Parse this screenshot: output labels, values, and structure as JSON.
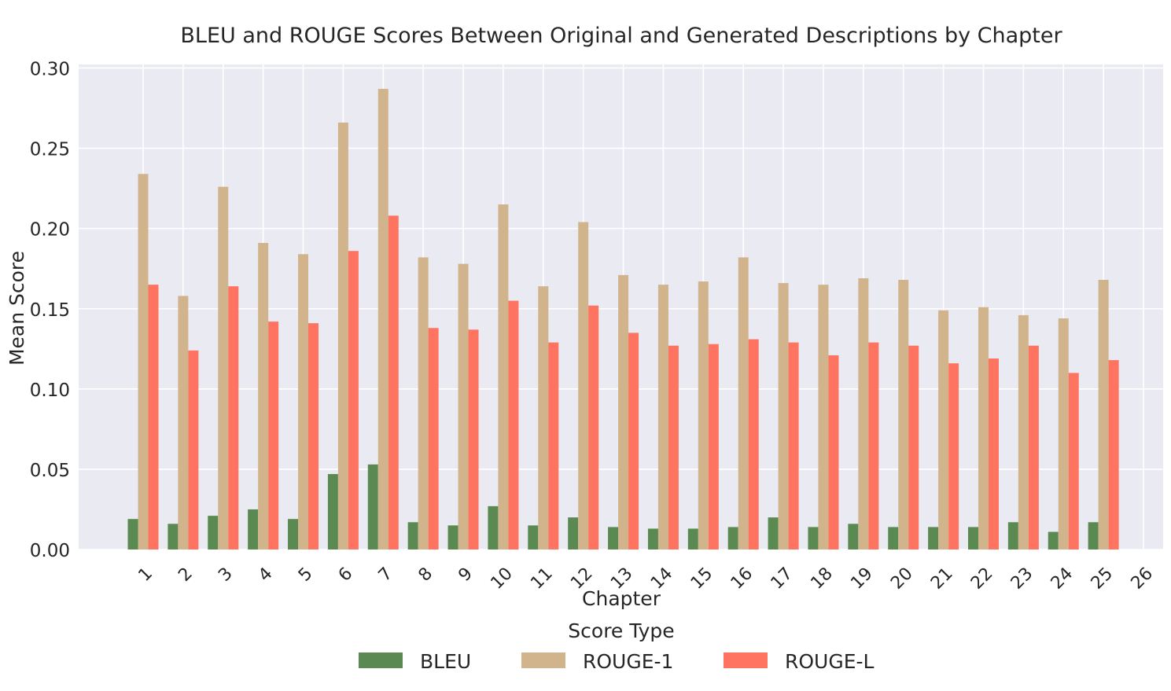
{
  "chart_data": {
    "type": "bar",
    "title": "BLEU and ROUGE Scores Between Original and Generated Descriptions by Chapter",
    "xlabel": "Chapter",
    "ylabel": "Mean Score",
    "ylim": [
      0,
      0.3
    ],
    "yticks": [
      "0.00",
      "0.05",
      "0.10",
      "0.15",
      "0.20",
      "0.25",
      "0.30"
    ],
    "grid": true,
    "legend_title": "Score Type",
    "legend_position": "bottom-center",
    "categories": [
      "1",
      "2",
      "3",
      "4",
      "5",
      "6",
      "7",
      "8",
      "9",
      "10",
      "11",
      "12",
      "13",
      "14",
      "15",
      "16",
      "17",
      "18",
      "19",
      "20",
      "21",
      "22",
      "23",
      "24",
      "25",
      "26"
    ],
    "series": [
      {
        "name": "BLEU",
        "color": "#5a8a52",
        "values": [
          0.019,
          0.016,
          0.021,
          0.025,
          0.019,
          0.047,
          0.053,
          0.017,
          0.015,
          0.027,
          0.015,
          0.02,
          0.014,
          0.013,
          0.013,
          0.014,
          0.02,
          0.014,
          0.016,
          0.014,
          0.014,
          0.014,
          0.017,
          0.011,
          0.017,
          0.0
        ]
      },
      {
        "name": "ROUGE-1",
        "color": "#d2b48c",
        "values": [
          0.234,
          0.158,
          0.226,
          0.191,
          0.184,
          0.266,
          0.287,
          0.182,
          0.178,
          0.215,
          0.164,
          0.204,
          0.171,
          0.165,
          0.167,
          0.182,
          0.166,
          0.165,
          0.169,
          0.168,
          0.149,
          0.151,
          0.146,
          0.144,
          0.168,
          0.0
        ]
      },
      {
        "name": "ROUGE-L",
        "color": "#ff7361",
        "values": [
          0.165,
          0.124,
          0.164,
          0.142,
          0.141,
          0.186,
          0.208,
          0.138,
          0.137,
          0.155,
          0.129,
          0.152,
          0.135,
          0.127,
          0.128,
          0.131,
          0.129,
          0.121,
          0.129,
          0.127,
          0.116,
          0.119,
          0.127,
          0.11,
          0.118,
          0.0
        ]
      }
    ]
  }
}
